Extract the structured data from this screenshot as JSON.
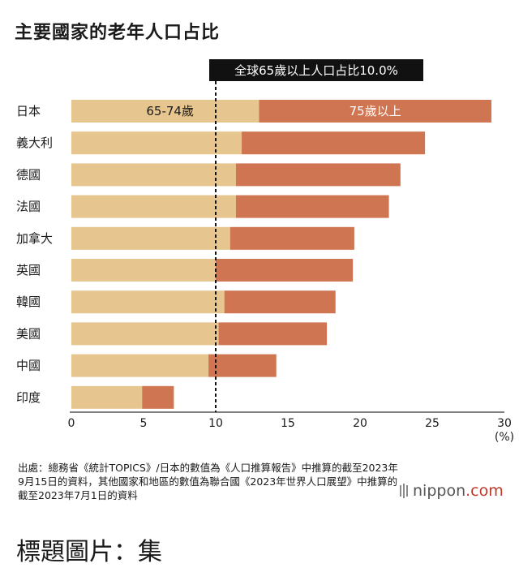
{
  "title": "主要國家的老年人口占比",
  "chart_data": {
    "type": "bar",
    "orientation": "horizontal",
    "stacked": true,
    "title": "主要國家的老年人口占比",
    "categories": [
      "日本",
      "義大利",
      "德國",
      "法國",
      "加拿大",
      "英國",
      "韓國",
      "美國",
      "中國",
      "印度"
    ],
    "series": [
      {
        "name": "65-74歲",
        "color": "#e6c58f",
        "values": [
          13.0,
          11.8,
          11.4,
          11.4,
          11.0,
          10.0,
          10.6,
          10.2,
          9.5,
          4.9
        ]
      },
      {
        "name": "75歲以上",
        "color": "#cf7552",
        "values": [
          16.1,
          12.7,
          11.4,
          10.6,
          8.6,
          9.5,
          7.7,
          7.5,
          4.7,
          2.2
        ]
      }
    ],
    "xlim": [
      0,
      30
    ],
    "xticks": [
      0,
      5,
      10,
      15,
      20,
      25,
      30
    ],
    "xunit": "(%)",
    "reference_line": {
      "value": 10.0,
      "label": "全球65歲以上人口占比10.0%"
    },
    "grid": false
  },
  "source": "出處：總務省《統計TOPICS》/日本的數值為《人口推算報告》中推算的截至2023年9月15日的資料，其他國家和地區的數值為聯合國《2023年世界人口展望》中推算的截至2023年7月1日的資料",
  "brand": {
    "name": "nippon",
    "suffix": ".com"
  },
  "caption": "標題圖片：集"
}
